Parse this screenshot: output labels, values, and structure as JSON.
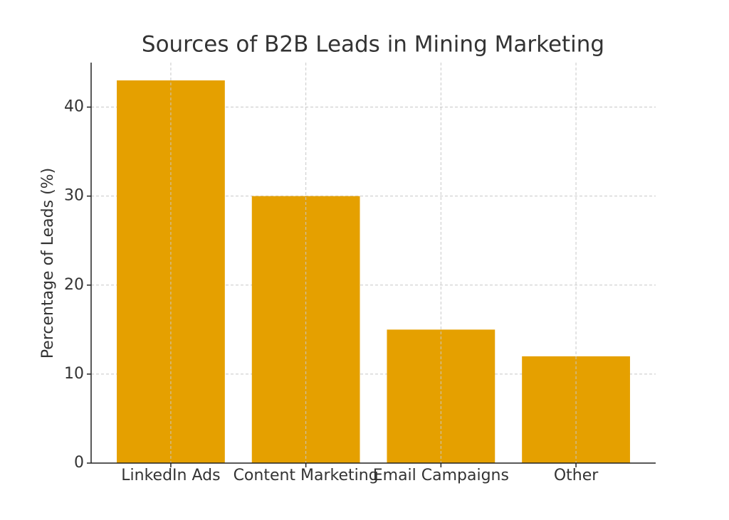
{
  "chart_data": {
    "type": "bar",
    "title": "Sources of B2B Leads in Mining Marketing",
    "y_label": "Percentage of Leads (%)",
    "categories": [
      "LinkedIn Ads",
      "Content Marketing",
      "Email Campaigns",
      "Other"
    ],
    "values": [
      43,
      30,
      15,
      12
    ],
    "color": "#e5a000",
    "ylim": [
      0,
      45
    ],
    "yticks": [
      0,
      10,
      20,
      30,
      40
    ],
    "grid": true
  }
}
